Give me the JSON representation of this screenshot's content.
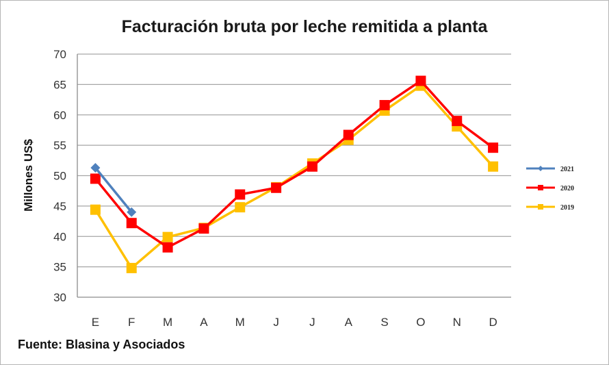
{
  "chart_data": {
    "type": "line",
    "title": "Facturación bruta por leche remitida a planta",
    "ylabel": "Millones US$",
    "xlabel": "",
    "categories": [
      "E",
      "F",
      "M",
      "A",
      "M",
      "J",
      "J",
      "A",
      "S",
      "O",
      "N",
      "D"
    ],
    "ylim": [
      30,
      70
    ],
    "yticks": [
      30,
      35,
      40,
      45,
      50,
      55,
      60,
      65,
      70
    ],
    "grid": true,
    "legend_position": "right",
    "series": [
      {
        "name": "2021",
        "color": "#4f81bd",
        "marker": "diamond",
        "values": [
          51.3,
          44.0,
          null,
          null,
          null,
          null,
          null,
          null,
          null,
          null,
          null,
          null
        ]
      },
      {
        "name": "2020",
        "color": "#ff0000",
        "marker": "square",
        "values": [
          49.5,
          42.2,
          38.2,
          41.3,
          46.9,
          48.0,
          51.5,
          56.7,
          61.6,
          65.6,
          59.0,
          54.6
        ]
      },
      {
        "name": "2019",
        "color": "#ffc000",
        "marker": "square",
        "values": [
          44.4,
          34.8,
          39.9,
          41.4,
          44.8,
          48.1,
          52.0,
          55.9,
          60.7,
          64.8,
          58.1,
          51.5
        ]
      }
    ]
  },
  "source": "Fuente: Blasina y Asociados"
}
